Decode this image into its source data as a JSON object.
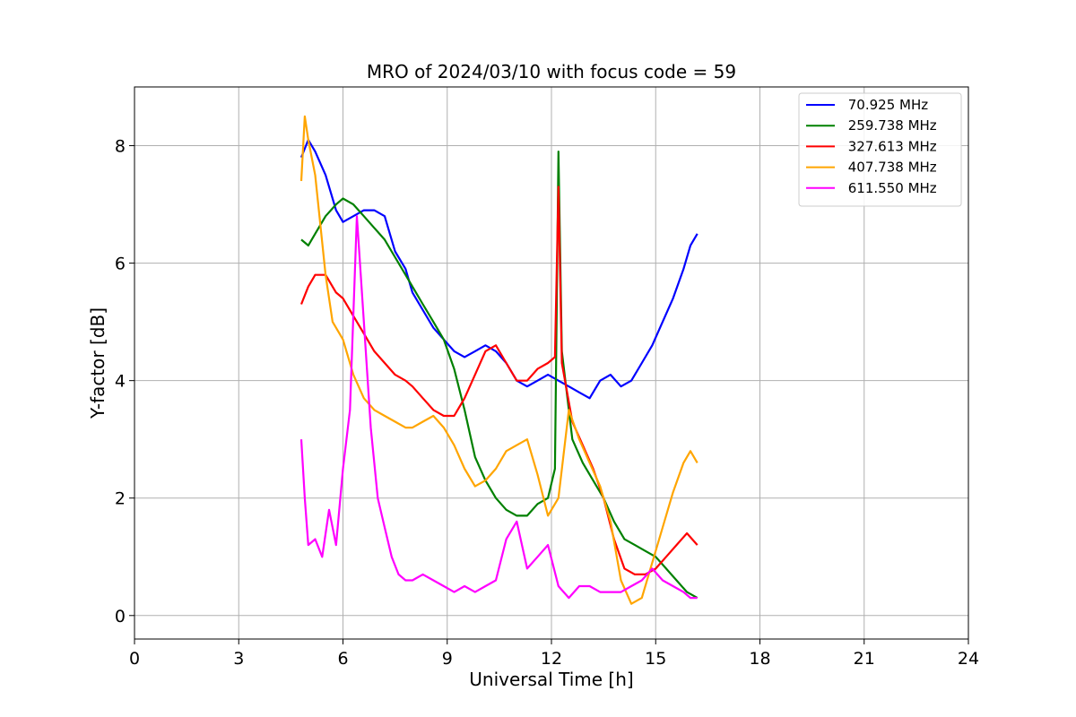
{
  "chart_data": {
    "type": "line",
    "title": "MRO of 2024/03/10 with focus code = 59",
    "xlabel": "Universal Time [h]",
    "ylabel": "Y-factor [dB]",
    "xlim": [
      0,
      24
    ],
    "ylim": [
      -0.4,
      9.0
    ],
    "xticks": [
      0,
      3,
      6,
      9,
      12,
      15,
      18,
      21,
      24
    ],
    "xtick_labels": [
      "0",
      "3",
      "6",
      "9",
      "12",
      "15",
      "18",
      "21",
      "24"
    ],
    "yticks": [
      0,
      2,
      4,
      6,
      8
    ],
    "ytick_labels": [
      "0",
      "2",
      "4",
      "6",
      "8"
    ],
    "grid": true,
    "legend_position": "top-right",
    "series": [
      {
        "name": " 70.925 MHz",
        "color": "#0000ff",
        "x": [
          4.8,
          5.0,
          5.2,
          5.5,
          5.8,
          6.0,
          6.3,
          6.6,
          6.9,
          7.2,
          7.5,
          7.8,
          8.0,
          8.3,
          8.6,
          8.9,
          9.2,
          9.5,
          9.8,
          10.1,
          10.4,
          10.7,
          11.0,
          11.3,
          11.6,
          11.9,
          12.2,
          12.5,
          12.8,
          13.1,
          13.4,
          13.7,
          14.0,
          14.3,
          14.6,
          14.9,
          15.2,
          15.5,
          15.8,
          16.0,
          16.2
        ],
        "y": [
          7.8,
          8.1,
          7.9,
          7.5,
          6.9,
          6.7,
          6.8,
          6.9,
          6.9,
          6.8,
          6.2,
          5.9,
          5.5,
          5.2,
          4.9,
          4.7,
          4.5,
          4.4,
          4.5,
          4.6,
          4.5,
          4.3,
          4.0,
          3.9,
          4.0,
          4.1,
          4.0,
          3.9,
          3.8,
          3.7,
          4.0,
          4.1,
          3.9,
          4.0,
          4.3,
          4.6,
          5.0,
          5.4,
          5.9,
          6.3,
          6.5
        ]
      },
      {
        "name": " 259.738 MHz",
        "color": "#008000",
        "x": [
          4.8,
          5.0,
          5.2,
          5.5,
          5.8,
          6.0,
          6.3,
          6.6,
          6.9,
          7.2,
          7.5,
          7.8,
          8.0,
          8.3,
          8.6,
          8.9,
          9.2,
          9.5,
          9.8,
          10.1,
          10.4,
          10.7,
          11.0,
          11.3,
          11.6,
          11.9,
          12.1,
          12.2,
          12.3,
          12.6,
          12.9,
          13.2,
          13.5,
          13.8,
          14.1,
          14.4,
          14.7,
          15.0,
          15.3,
          15.6,
          15.9,
          16.2
        ],
        "y": [
          6.4,
          6.3,
          6.5,
          6.8,
          7.0,
          7.1,
          7.0,
          6.8,
          6.6,
          6.4,
          6.1,
          5.8,
          5.6,
          5.3,
          5.0,
          4.7,
          4.2,
          3.5,
          2.7,
          2.3,
          2.0,
          1.8,
          1.7,
          1.7,
          1.9,
          2.0,
          2.5,
          7.9,
          4.5,
          3.0,
          2.6,
          2.3,
          2.0,
          1.6,
          1.3,
          1.2,
          1.1,
          1.0,
          0.8,
          0.6,
          0.4,
          0.3
        ]
      },
      {
        "name": " 327.613 MHz",
        "color": "#ff0000",
        "x": [
          4.8,
          5.0,
          5.2,
          5.5,
          5.8,
          6.0,
          6.3,
          6.6,
          6.9,
          7.2,
          7.5,
          7.8,
          8.0,
          8.3,
          8.6,
          8.9,
          9.2,
          9.5,
          9.8,
          10.1,
          10.4,
          10.7,
          11.0,
          11.3,
          11.6,
          11.9,
          12.1,
          12.2,
          12.3,
          12.6,
          12.9,
          13.2,
          13.5,
          13.8,
          14.1,
          14.4,
          14.7,
          15.0,
          15.3,
          15.6,
          15.9,
          16.2
        ],
        "y": [
          5.3,
          5.6,
          5.8,
          5.8,
          5.5,
          5.4,
          5.1,
          4.8,
          4.5,
          4.3,
          4.1,
          4.0,
          3.9,
          3.7,
          3.5,
          3.4,
          3.4,
          3.7,
          4.1,
          4.5,
          4.6,
          4.3,
          4.0,
          4.0,
          4.2,
          4.3,
          4.4,
          7.3,
          4.3,
          3.3,
          2.9,
          2.5,
          2.0,
          1.3,
          0.8,
          0.7,
          0.7,
          0.8,
          1.0,
          1.2,
          1.4,
          1.2
        ]
      },
      {
        "name": " 407.738 MHz",
        "color": "#ffa500",
        "x": [
          4.8,
          4.9,
          5.0,
          5.2,
          5.5,
          5.7,
          6.0,
          6.3,
          6.6,
          6.9,
          7.2,
          7.5,
          7.8,
          8.0,
          8.3,
          8.6,
          8.9,
          9.2,
          9.5,
          9.8,
          10.1,
          10.4,
          10.7,
          11.0,
          11.3,
          11.6,
          11.9,
          12.2,
          12.5,
          12.8,
          13.1,
          13.4,
          13.7,
          14.0,
          14.3,
          14.6,
          14.9,
          15.2,
          15.5,
          15.8,
          16.0,
          16.2
        ],
        "y": [
          7.4,
          8.5,
          8.1,
          7.5,
          5.8,
          5.0,
          4.7,
          4.1,
          3.7,
          3.5,
          3.4,
          3.3,
          3.2,
          3.2,
          3.3,
          3.4,
          3.2,
          2.9,
          2.5,
          2.2,
          2.3,
          2.5,
          2.8,
          2.9,
          3.0,
          2.4,
          1.7,
          2.0,
          3.5,
          3.0,
          2.6,
          2.2,
          1.6,
          0.6,
          0.2,
          0.3,
          0.9,
          1.5,
          2.1,
          2.6,
          2.8,
          2.6
        ]
      },
      {
        "name": " 611.550 MHz",
        "color": "#ff00ff",
        "x": [
          4.8,
          4.9,
          5.0,
          5.2,
          5.4,
          5.6,
          5.8,
          6.0,
          6.2,
          6.4,
          6.6,
          6.8,
          7.0,
          7.2,
          7.4,
          7.6,
          7.8,
          8.0,
          8.3,
          8.6,
          8.9,
          9.2,
          9.5,
          9.8,
          10.1,
          10.4,
          10.7,
          11.0,
          11.3,
          11.6,
          11.9,
          12.2,
          12.5,
          12.8,
          13.1,
          13.4,
          13.7,
          14.0,
          14.3,
          14.6,
          14.9,
          15.2,
          15.5,
          15.8,
          16.0,
          16.2
        ],
        "y": [
          3.0,
          2.0,
          1.2,
          1.3,
          1.0,
          1.8,
          1.2,
          2.5,
          3.5,
          6.8,
          5.0,
          3.2,
          2.0,
          1.5,
          1.0,
          0.7,
          0.6,
          0.6,
          0.7,
          0.6,
          0.5,
          0.4,
          0.5,
          0.4,
          0.5,
          0.6,
          1.3,
          1.6,
          0.8,
          1.0,
          1.2,
          0.5,
          0.3,
          0.5,
          0.5,
          0.4,
          0.4,
          0.4,
          0.5,
          0.6,
          0.8,
          0.6,
          0.5,
          0.4,
          0.3,
          0.3
        ]
      }
    ]
  }
}
